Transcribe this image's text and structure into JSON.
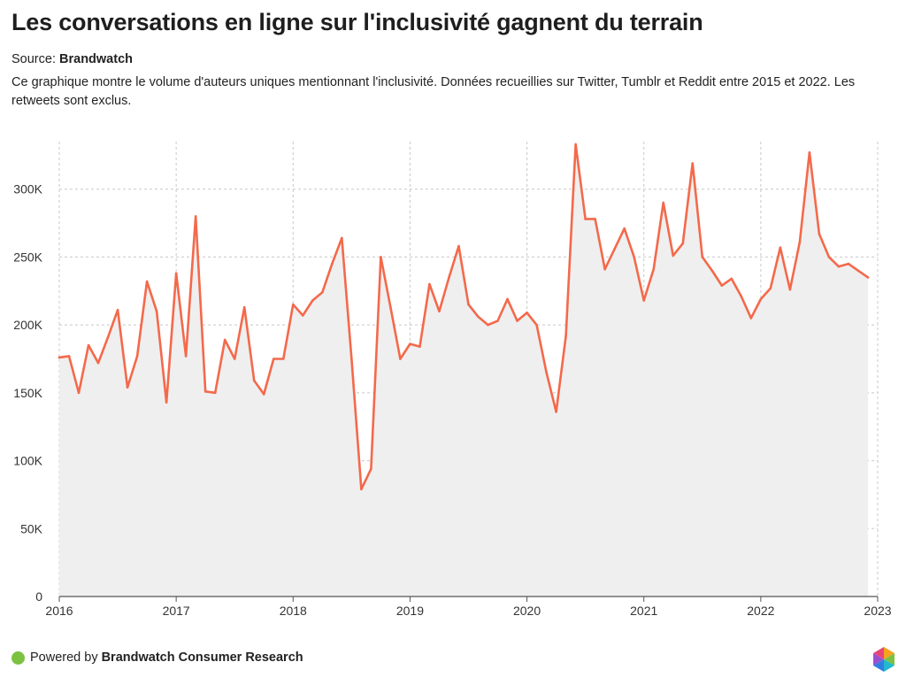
{
  "title": "Les conversations en ligne sur l'inclusivité gagnent du terrain",
  "source_label": "Source:",
  "source_name": "Brandwatch",
  "description": "Ce graphique montre le volume d'auteurs uniques mentionnant l'inclusivité. Données recueillies sur Twitter, Tumblr et Reddit entre 2015 et 2022. Les retweets sont exclus.",
  "footer": {
    "powered_by": "Powered by",
    "brand": "Brandwatch Consumer Research"
  },
  "colors": {
    "line": "#f4694b",
    "area": "#efefef",
    "grid": "#c8c8c8",
    "footer_dot": "#7cc142"
  },
  "chart_data": {
    "type": "area",
    "title": "Les conversations en ligne sur l'inclusivité gagnent du terrain",
    "xlabel": "",
    "ylabel": "",
    "xlim": [
      2016,
      2023
    ],
    "ylim": [
      0,
      335000
    ],
    "x_ticks": [
      2016,
      2017,
      2018,
      2019,
      2020,
      2021,
      2022,
      2023
    ],
    "x_tick_labels": [
      "2016",
      "2017",
      "2018",
      "2019",
      "2020",
      "2021",
      "2022",
      "2023"
    ],
    "y_ticks": [
      0,
      50000,
      100000,
      150000,
      200000,
      250000,
      300000
    ],
    "y_tick_labels": [
      "0",
      "50K",
      "100K",
      "150K",
      "200K",
      "250K",
      "300K"
    ],
    "grid": true,
    "series": [
      {
        "name": "Auteurs uniques",
        "start": "2016-01",
        "frequency": "monthly",
        "values": [
          176000,
          177000,
          150000,
          185000,
          172000,
          191000,
          211000,
          154000,
          177000,
          232000,
          210000,
          143000,
          238000,
          177000,
          280000,
          151000,
          150000,
          189000,
          175000,
          213000,
          159000,
          149000,
          175000,
          175000,
          215000,
          207000,
          218000,
          224000,
          245000,
          264000,
          175000,
          79000,
          94000,
          250000,
          213000,
          175000,
          186000,
          184000,
          230000,
          210000,
          235000,
          258000,
          215000,
          206000,
          200000,
          203000,
          219000,
          203000,
          209000,
          200000,
          165000,
          136000,
          192000,
          333000,
          278000,
          278000,
          241000,
          256000,
          271000,
          250000,
          218000,
          241000,
          290000,
          251000,
          260000,
          319000,
          250000,
          240000,
          229000,
          234000,
          221000,
          205000,
          219000,
          227000,
          257000,
          226000,
          261000,
          327000,
          267000,
          250000,
          243000,
          245000,
          240000,
          235000
        ]
      }
    ]
  }
}
